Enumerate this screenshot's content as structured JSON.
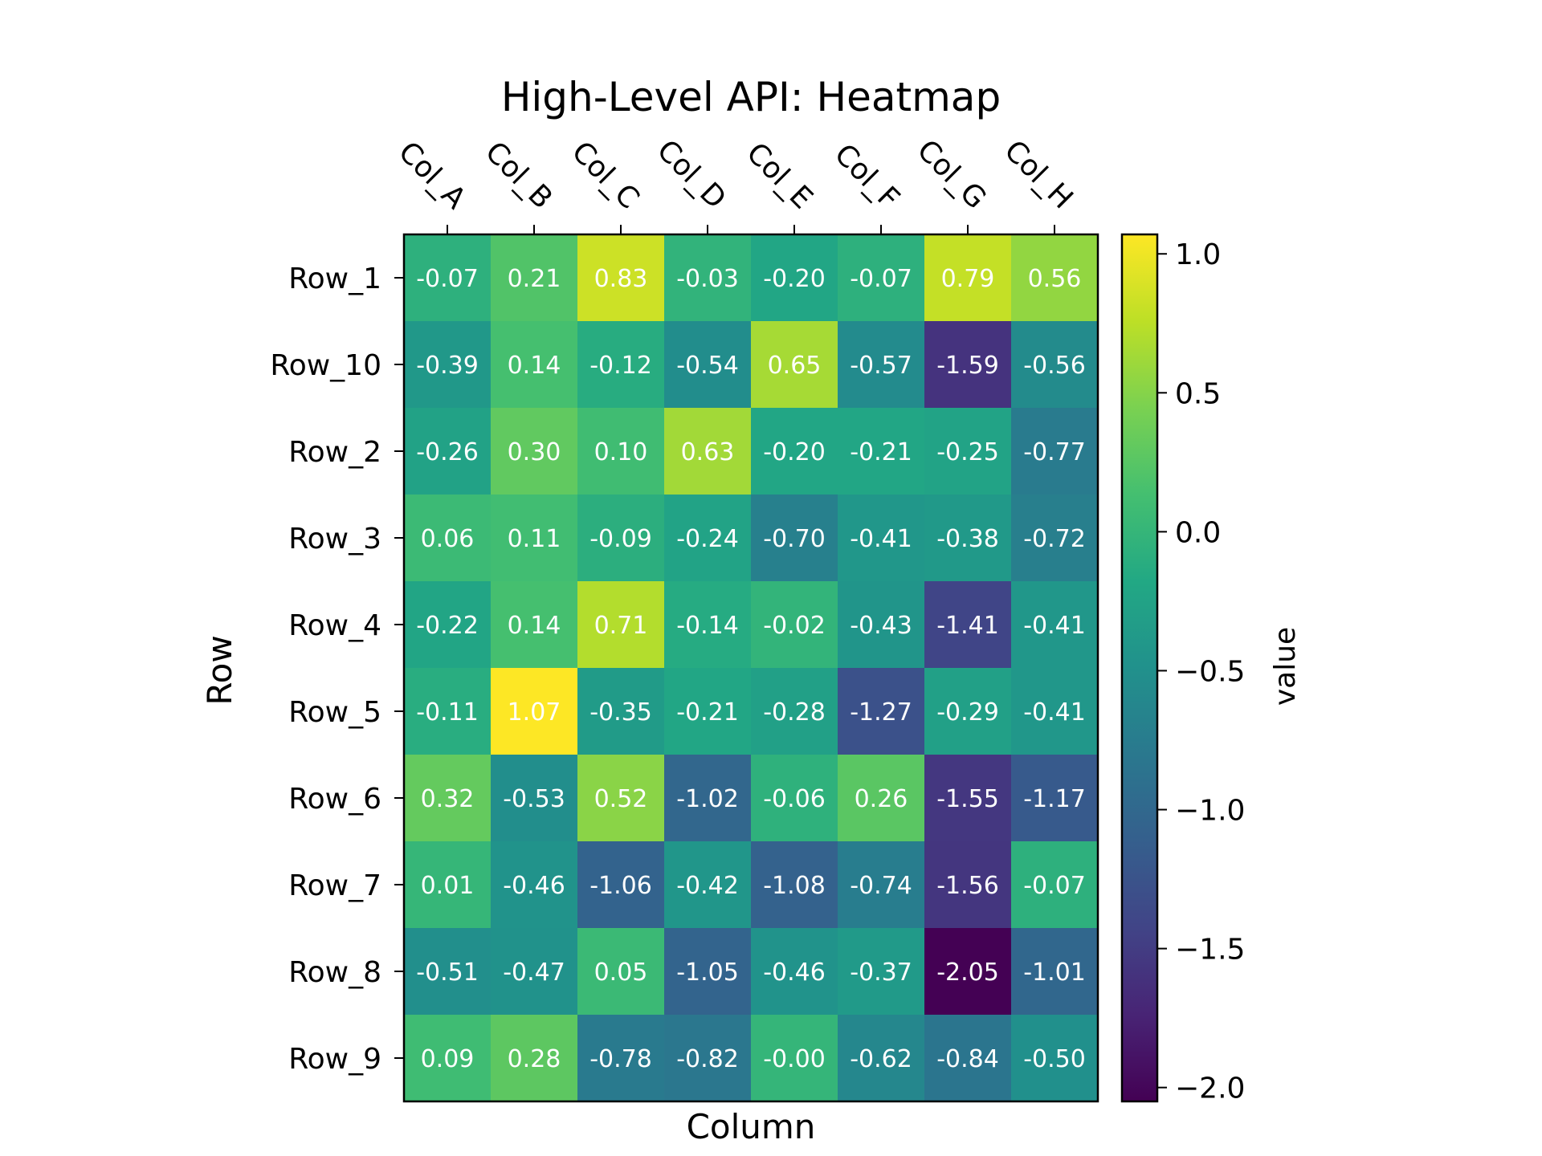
{
  "chart_data": {
    "type": "heatmap",
    "title": "High-Level API: Heatmap",
    "xlabel": "Column",
    "ylabel": "Row",
    "columns": [
      "Col_A",
      "Col_B",
      "Col_C",
      "Col_D",
      "Col_E",
      "Col_F",
      "Col_G",
      "Col_H"
    ],
    "rows": [
      "Row_1",
      "Row_10",
      "Row_2",
      "Row_3",
      "Row_4",
      "Row_5",
      "Row_6",
      "Row_7",
      "Row_8",
      "Row_9"
    ],
    "values": [
      [
        -0.07,
        0.21,
        0.83,
        -0.03,
        -0.2,
        -0.07,
        0.79,
        0.56
      ],
      [
        -0.39,
        0.14,
        -0.12,
        -0.54,
        0.65,
        -0.57,
        -1.59,
        -0.56
      ],
      [
        -0.26,
        0.3,
        0.1,
        0.63,
        -0.2,
        -0.21,
        -0.25,
        -0.77
      ],
      [
        0.06,
        0.11,
        -0.09,
        -0.24,
        -0.7,
        -0.41,
        -0.38,
        -0.72
      ],
      [
        -0.22,
        0.14,
        0.71,
        -0.14,
        -0.02,
        -0.43,
        -1.41,
        -0.41
      ],
      [
        -0.11,
        1.07,
        -0.35,
        -0.21,
        -0.28,
        -1.27,
        -0.29,
        -0.41
      ],
      [
        0.32,
        -0.53,
        0.52,
        -1.02,
        -0.06,
        0.26,
        -1.55,
        -1.17
      ],
      [
        0.01,
        -0.46,
        -1.06,
        -0.42,
        -1.08,
        -0.74,
        -1.56,
        -0.07
      ],
      [
        -0.51,
        -0.47,
        0.05,
        -1.05,
        -0.46,
        -0.37,
        -2.05,
        -1.01
      ],
      [
        0.09,
        0.28,
        -0.78,
        -0.82,
        -0.0,
        -0.62,
        -0.84,
        -0.5
      ]
    ],
    "cell_labels": [
      [
        "-0.07",
        "0.21",
        "0.83",
        "-0.03",
        "-0.20",
        "-0.07",
        "0.79",
        "0.56"
      ],
      [
        "-0.39",
        "0.14",
        "-0.12",
        "-0.54",
        "0.65",
        "-0.57",
        "-1.59",
        "-0.56"
      ],
      [
        "-0.26",
        "0.30",
        "0.10",
        "0.63",
        "-0.20",
        "-0.21",
        "-0.25",
        "-0.77"
      ],
      [
        "0.06",
        "0.11",
        "-0.09",
        "-0.24",
        "-0.70",
        "-0.41",
        "-0.38",
        "-0.72"
      ],
      [
        "-0.22",
        "0.14",
        "0.71",
        "-0.14",
        "-0.02",
        "-0.43",
        "-1.41",
        "-0.41"
      ],
      [
        "-0.11",
        "1.07",
        "-0.35",
        "-0.21",
        "-0.28",
        "-1.27",
        "-0.29",
        "-0.41"
      ],
      [
        "0.32",
        "-0.53",
        "0.52",
        "-1.02",
        "-0.06",
        "0.26",
        "-1.55",
        "-1.17"
      ],
      [
        "0.01",
        "-0.46",
        "-1.06",
        "-0.42",
        "-1.08",
        "-0.74",
        "-1.56",
        "-0.07"
      ],
      [
        "-0.51",
        "-0.47",
        "0.05",
        "-1.05",
        "-0.46",
        "-0.37",
        "-2.05",
        "-1.01"
      ],
      [
        "0.09",
        "0.28",
        "-0.78",
        "-0.82",
        "-0.00",
        "-0.62",
        "-0.84",
        "-0.50"
      ]
    ],
    "colormap": "viridis",
    "vmin": -2.05,
    "vmax": 1.07,
    "colorbar": {
      "label": "value",
      "ticks": [
        1.0,
        0.5,
        0.0,
        -0.5,
        -1.0,
        -1.5,
        -2.0
      ],
      "tick_labels": [
        "1.0",
        "0.5",
        "0.0",
        "−0.5",
        "−1.0",
        "−1.5",
        "−2.0"
      ]
    },
    "column_tick_position": "top",
    "grid": false
  }
}
